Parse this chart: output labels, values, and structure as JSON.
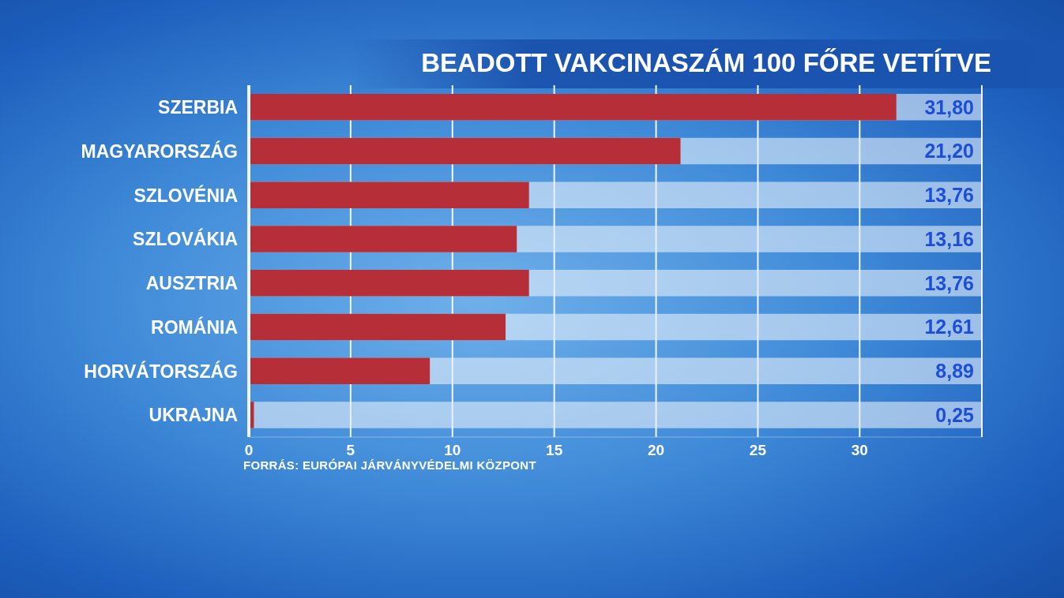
{
  "chart_data": {
    "type": "bar",
    "orientation": "horizontal",
    "title": "BEADOTT VAKCINASZÁM 100 FŐRE VETÍTVE",
    "categories": [
      "SZERBIA",
      "MAGYARORSZÁG",
      "SZLOVÉNIA",
      "SZLOVÁKIA",
      "AUSZTRIA",
      "ROMÁNIA",
      "HORVÁTORSZÁG",
      "UKRAJNA"
    ],
    "values": [
      31.8,
      21.2,
      13.76,
      13.16,
      13.76,
      12.61,
      8.89,
      0.25
    ],
    "value_labels": [
      "31,80",
      "21,20",
      "13,76",
      "13,16",
      "13,76",
      "12,61",
      "8,89",
      "0,25"
    ],
    "color": "#b62e38",
    "xlim": [
      0,
      36
    ],
    "xticks": [
      0,
      5,
      10,
      15,
      20,
      25,
      30
    ],
    "grid": "x",
    "annotations": [
      "FORRÁS: EURÓPAI JÁRVÁNYVÉDELMI KÖZPONT"
    ]
  }
}
